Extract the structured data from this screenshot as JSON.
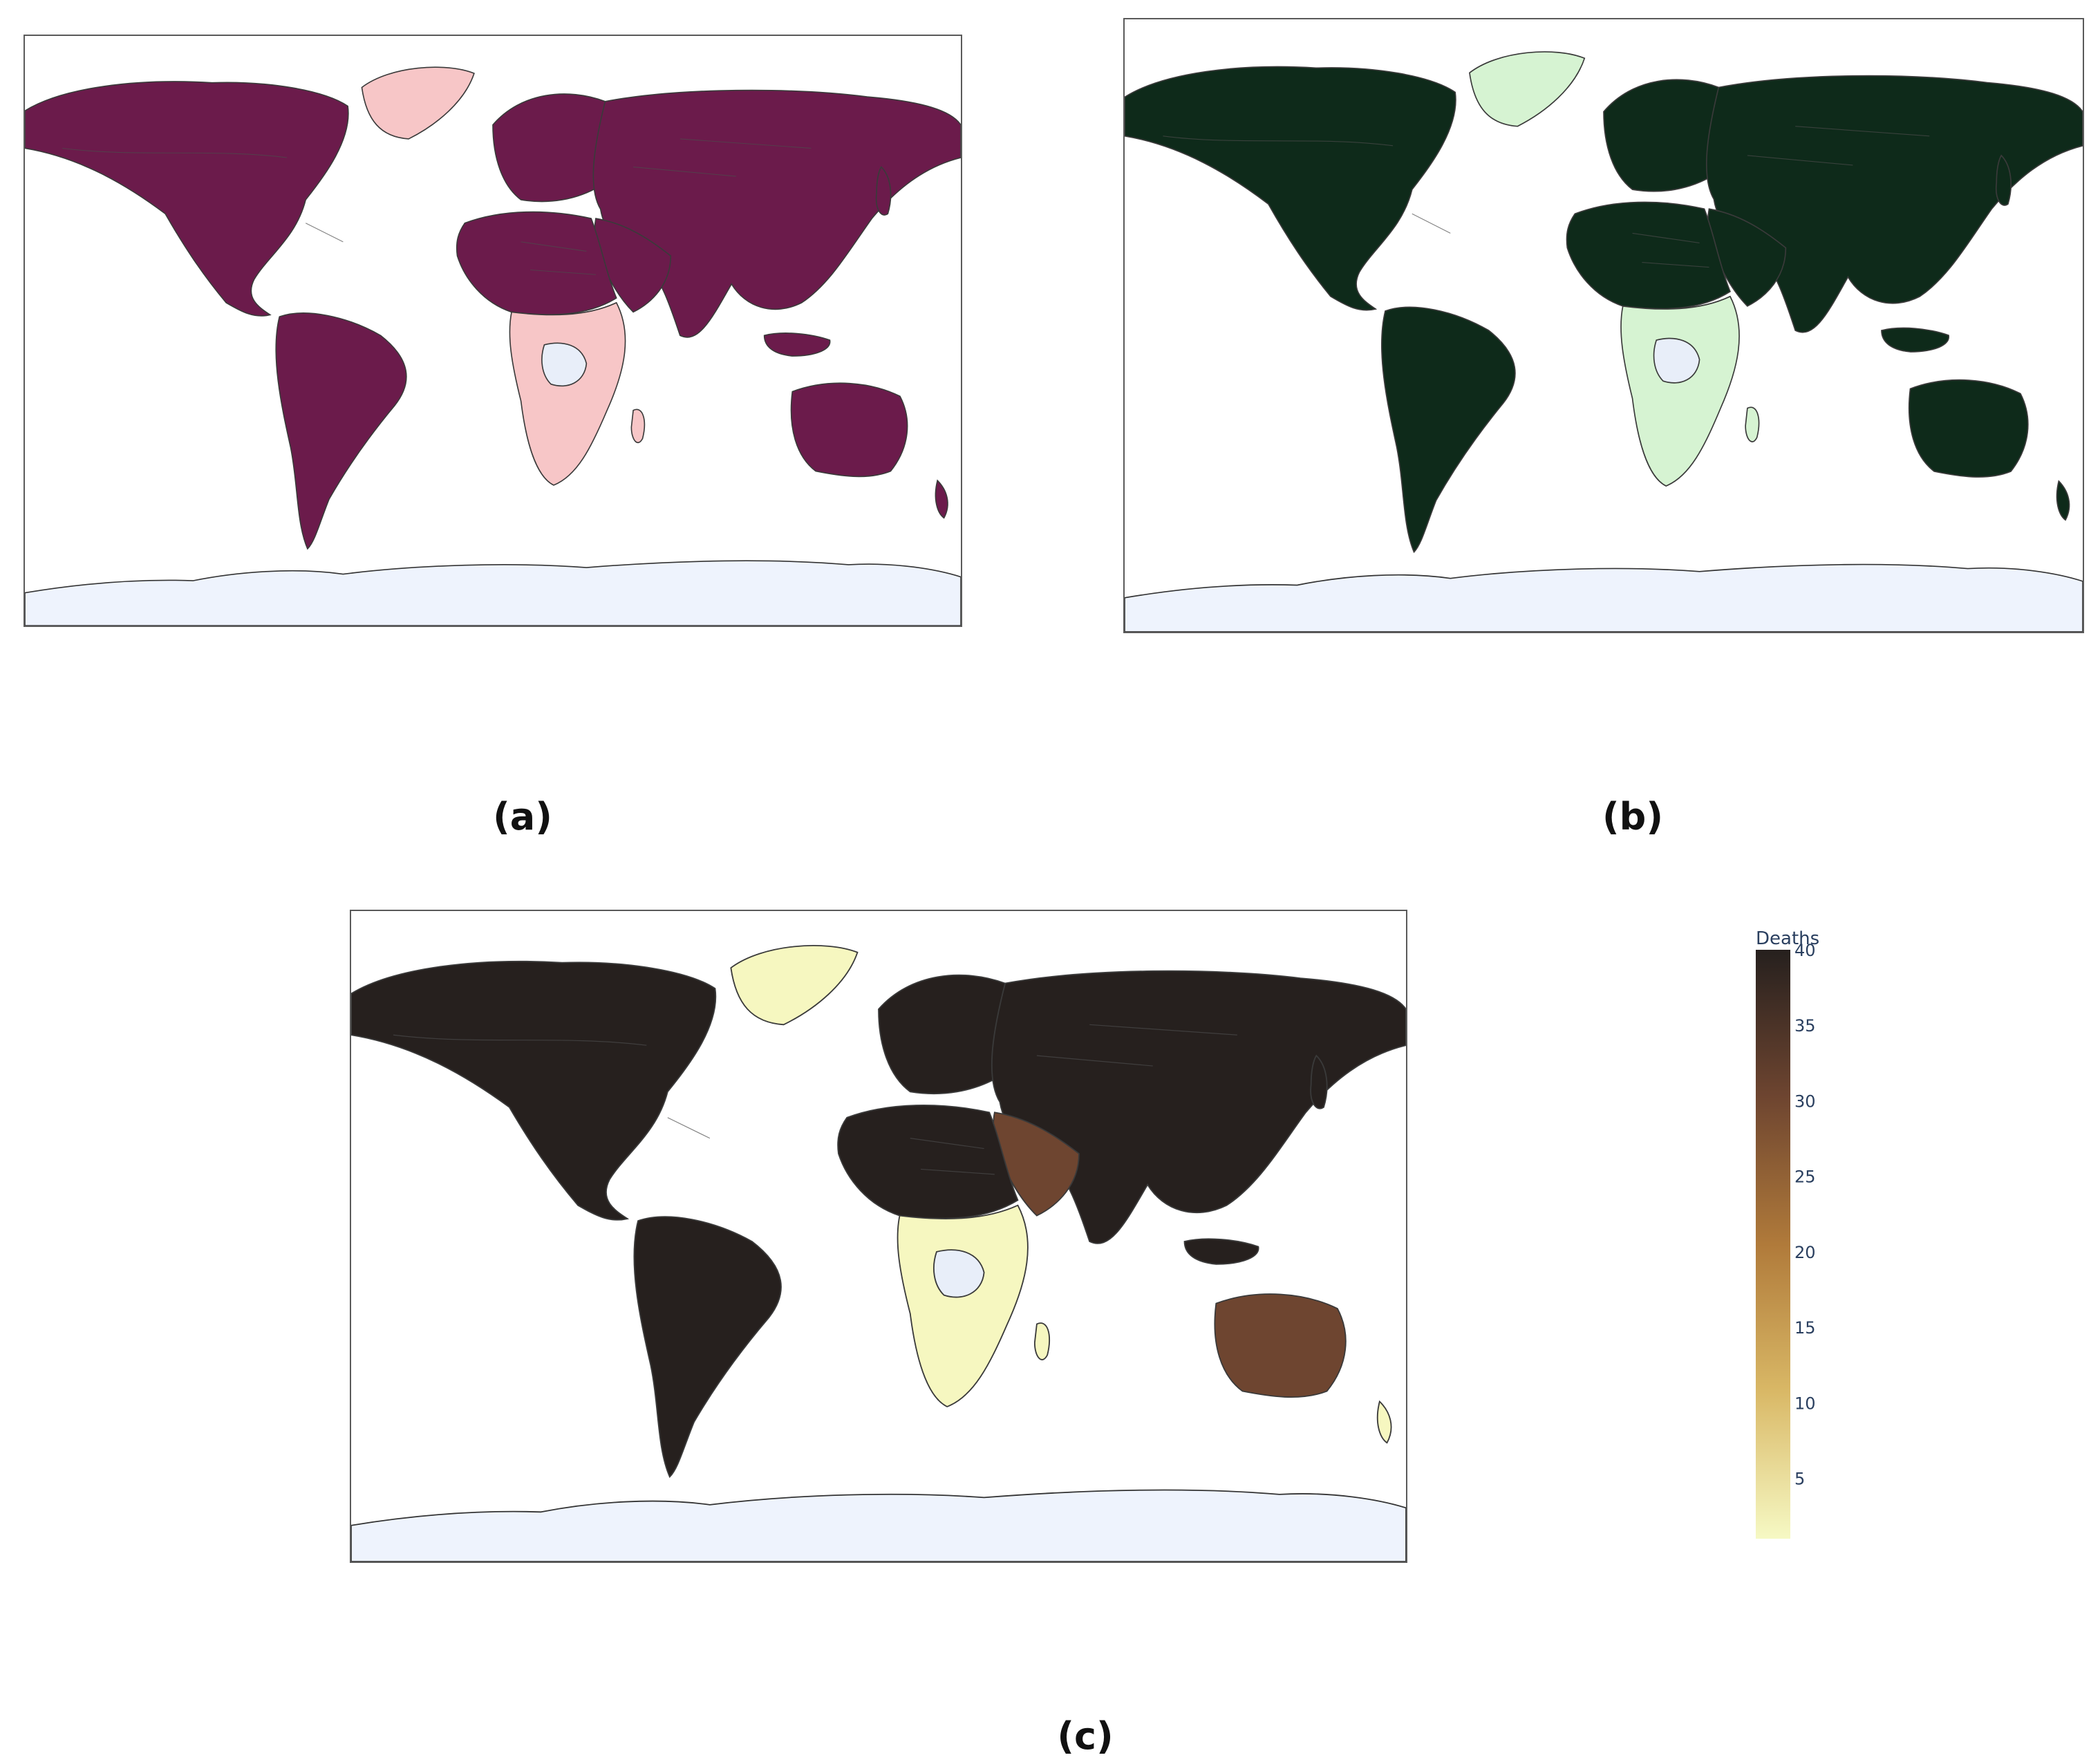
{
  "captions": {
    "a": "(a)",
    "b": "(b)",
    "c": "(c)"
  },
  "colorbar": {
    "title": "Deaths",
    "range": [
      1,
      40
    ],
    "ticks": [
      40,
      35,
      30,
      25,
      20,
      15,
      10,
      5
    ],
    "colorscale": [
      "#f6f9c4",
      "#d9b866",
      "#b07a3a",
      "#6e4530",
      "#26201e"
    ]
  },
  "maps": {
    "a": {
      "palette": {
        "high": "#6b1b4b",
        "mid": "#e08e96",
        "low": "#f7c6c7",
        "nodata": "#e8eef9",
        "antarctica": "#eef3fd"
      }
    },
    "b": {
      "palette": {
        "high": "#0e2a1a",
        "mid": "#2f8a4f",
        "low": "#d6f3d2",
        "nodata": "#e8eef9",
        "antarctica": "#eef3fd"
      }
    },
    "c": {
      "palette": {
        "high": "#26201e",
        "mid": "#6e4530",
        "low": "#f6f7c0",
        "tan": "#d2b06a",
        "nodata": "#e8eef9",
        "antarctica": "#eef3fd"
      }
    }
  }
}
